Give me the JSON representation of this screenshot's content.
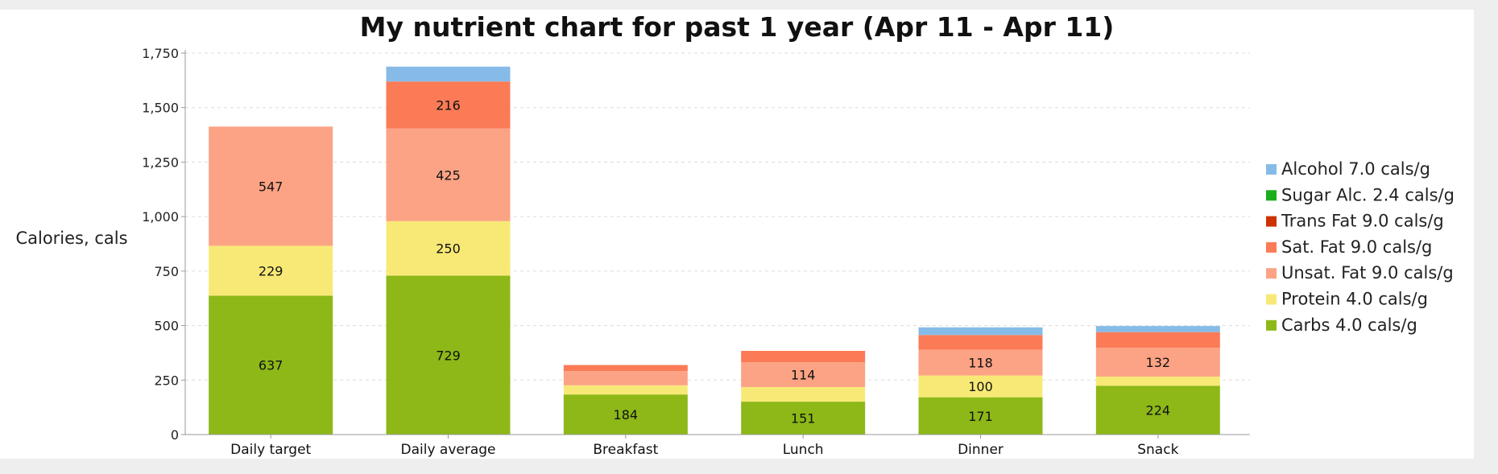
{
  "chart_data": {
    "type": "bar",
    "stacked": true,
    "title": "My nutrient chart for past 1 year (Apr 11 - Apr 11)",
    "xlabel": "",
    "ylabel": "Calories, cals",
    "ylim": [
      0,
      1750
    ],
    "yticks": [
      0,
      250,
      500,
      750,
      1000,
      1250,
      1500,
      1750
    ],
    "ytick_labels": [
      "0",
      "250",
      "500",
      "750",
      "1,000",
      "1,250",
      "1,500",
      "1,750"
    ],
    "grid": true,
    "legend_position": "right",
    "categories": [
      "Daily target",
      "Daily average",
      "Breakfast",
      "Lunch",
      "Dinner",
      "Snack"
    ],
    "series": [
      {
        "name": "Carbs 4.0 cals/g",
        "color": "#8db817",
        "values": [
          637,
          729,
          184,
          151,
          171,
          224
        ],
        "labels": [
          "637",
          "729",
          "184",
          "151",
          "171",
          "224"
        ]
      },
      {
        "name": "Protein 4.0 cals/g",
        "color": "#f8e976",
        "values": [
          229,
          250,
          42,
          67,
          100,
          42
        ],
        "labels": [
          "229",
          "250",
          "",
          "",
          "100",
          ""
        ]
      },
      {
        "name": "Unsat. Fat 9.0 cals/g",
        "color": "#fca385",
        "values": [
          547,
          425,
          65,
          114,
          118,
          132
        ],
        "labels": [
          "547",
          "425",
          "",
          "114",
          "118",
          "132"
        ]
      },
      {
        "name": "Sat. Fat 9.0 cals/g",
        "color": "#fb7b57",
        "values": [
          0,
          216,
          28,
          52,
          68,
          72
        ],
        "labels": [
          "",
          "216",
          "",
          "",
          "",
          ""
        ]
      },
      {
        "name": "Trans Fat 9.0 cals/g",
        "color": "#cc3300",
        "values": [
          0,
          0,
          0,
          0,
          0,
          0
        ],
        "labels": [
          "",
          "",
          "",
          "",
          "",
          ""
        ]
      },
      {
        "name": "Sugar Alc. 2.4 cals/g",
        "color": "#1aae1a",
        "values": [
          0,
          0,
          0,
          0,
          0,
          0
        ],
        "labels": [
          "",
          "",
          "",
          "",
          "",
          ""
        ]
      },
      {
        "name": "Alcohol 7.0 cals/g",
        "color": "#86bbe8",
        "values": [
          0,
          68,
          0,
          0,
          35,
          28
        ],
        "labels": [
          "",
          "",
          "",
          "",
          "",
          ""
        ]
      }
    ],
    "legend_order": [
      "Alcohol 7.0 cals/g",
      "Sugar Alc. 2.4 cals/g",
      "Trans Fat 9.0 cals/g",
      "Sat. Fat 9.0 cals/g",
      "Unsat. Fat 9.0 cals/g",
      "Protein 4.0 cals/g",
      "Carbs 4.0 cals/g"
    ]
  }
}
